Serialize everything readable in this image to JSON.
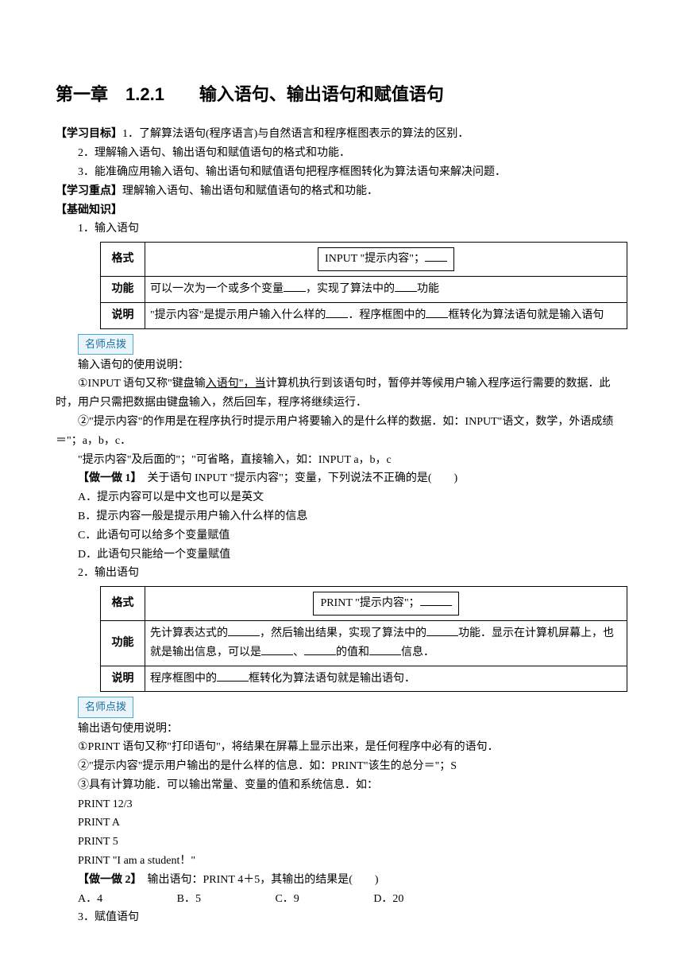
{
  "title": "第一章　1.2.1　　输入语句、输出语句和赋值语句",
  "goal_label": "【学习目标】",
  "goals": {
    "g1": "1．了解算法语句(程序语言)与自然语言和程序框图表示的算法的区别．",
    "g2": "2．理解输入语句、输出语句和赋值语句的格式和功能．",
    "g3": "3．能准确应用输入语句、输出语句和赋值语句把程序框图转化为算法语句来解决问题．"
  },
  "focus_label": "【学习重点】",
  "focus_text": "理解输入语句、输出语句和赋值语句的格式和功能．",
  "base_label": "【基础知识】",
  "sec1": {
    "heading": "1．输入语句",
    "t_format": "格式",
    "t_func": "功能",
    "t_desc": "说明",
    "format_pre": "INPUT \"提示内容\"；",
    "func_a": "可以一次为一个或多个变量",
    "func_b": "，实现了算法中的",
    "func_c": "功能",
    "desc_a": "\"提示内容\"是提示用户输入什么样的",
    "desc_b": "．程序框图中的",
    "desc_c": "框转化为算法语句就是输入语句"
  },
  "tag_teacher": "名师点拨",
  "input_notes": {
    "title": "输入语句的使用说明：",
    "p1a": "①INPUT 语句又称\"键盘输",
    "p1u": "入语句\"，当",
    "p1b": "计算机执行到该语句时，暂停并等候用户输入程序运行需要的数据．此时，用户只需把数据由键盘输入，然后回车，程序将继续运行．",
    "p2": "②\"提示内容\"的作用是在程序执行时提示用户将要输入的是什么样的数据．如：INPUT\"语文，数学，外语成绩＝\"；a，b，c．",
    "p3": "\"提示内容\"及后面的\"；\"可省略，直接输入，如：INPUT a，b，c"
  },
  "ex1": {
    "label": "【做一做 1】",
    "stem": "　关于语句 INPUT \"提示内容\"；变量，下列说法不正确的是(　　)",
    "a": "A．提示内容可以是中文也可以是英文",
    "b": "B．提示内容一般是提示用户输入什么样的信息",
    "c": "C．此语句可以给多个变量赋值",
    "d": "D．此语句只能给一个变量赋值"
  },
  "sec2": {
    "heading": "2．输出语句",
    "t_format": "格式",
    "t_func": "功能",
    "t_desc": "说明",
    "format_pre": "PRINT \"提示内容\"；",
    "func_a": "先计算表达式的",
    "func_b": "，然后输出结果，实现了算法中的",
    "func_c": "功能．显示在计算机屏幕上，也就是输出信息，可以是",
    "func_d": "、",
    "func_e": "的值和",
    "func_f": "信息．",
    "desc_a": "程序框图中的",
    "desc_b": "框转化为算法语句就是输出语句．"
  },
  "output_notes": {
    "title": "输出语句使用说明：",
    "p1": "①PRINT 语句又称\"打印语句\"，将结果在屏幕上显示出来，是任何程序中必有的语句．",
    "p2": "②\"提示内容\"提示用户输出的是什么样的信息．如：PRINT\"该生的总分＝\"；S",
    "p3": "③具有计算功能．可以输出常量、变量的值和系统信息．如：",
    "c1": "PRINT 12/3",
    "c2": "PRINT A",
    "c3": "PRINT 5",
    "c4": "PRINT \"I am a student！\""
  },
  "ex2": {
    "label": "【做一做 2】",
    "stem": "　输出语句：PRINT 4＋5，其输出的结果是(　　)",
    "a": "A．4",
    "b": "B．5",
    "c": "C．9",
    "d": "D．20"
  },
  "sec3_heading": "3．赋值语句"
}
